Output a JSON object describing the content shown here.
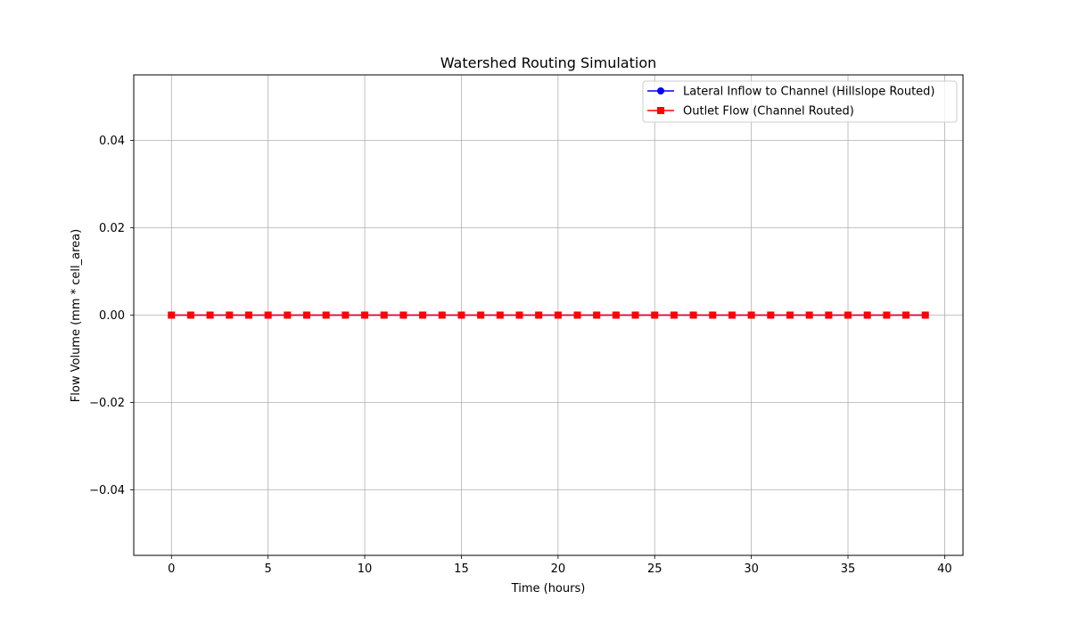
{
  "chart_data": {
    "type": "line",
    "title": "Watershed Routing Simulation",
    "xlabel": "Time (hours)",
    "ylabel": "Flow Volume (mm * cell_area)",
    "xlim": [
      -1.95,
      40.95
    ],
    "ylim": [
      -0.055,
      0.055
    ],
    "xticks": [
      0,
      5,
      10,
      15,
      20,
      25,
      30,
      35,
      40
    ],
    "yticks": [
      -0.04,
      -0.02,
      0.0,
      0.02,
      0.04
    ],
    "ytick_labels": [
      "−0.04",
      "−0.02",
      "0.00",
      "0.02",
      "0.04"
    ],
    "grid": true,
    "legend_position": "top-right",
    "x": [
      0,
      1,
      2,
      3,
      4,
      5,
      6,
      7,
      8,
      9,
      10,
      11,
      12,
      13,
      14,
      15,
      16,
      17,
      18,
      19,
      20,
      21,
      22,
      23,
      24,
      25,
      26,
      27,
      28,
      29,
      30,
      31,
      32,
      33,
      34,
      35,
      36,
      37,
      38,
      39
    ],
    "series": [
      {
        "name": "Lateral Inflow to Channel (Hillslope Routed)",
        "color": "#0000ff",
        "marker": "circle",
        "values": [
          0,
          0,
          0,
          0,
          0,
          0,
          0,
          0,
          0,
          0,
          0,
          0,
          0,
          0,
          0,
          0,
          0,
          0,
          0,
          0,
          0,
          0,
          0,
          0,
          0,
          0,
          0,
          0,
          0,
          0,
          0,
          0,
          0,
          0,
          0,
          0,
          0,
          0,
          0,
          0
        ]
      },
      {
        "name": "Outlet Flow (Channel Routed)",
        "color": "#ff0000",
        "marker": "square",
        "values": [
          0,
          0,
          0,
          0,
          0,
          0,
          0,
          0,
          0,
          0,
          0,
          0,
          0,
          0,
          0,
          0,
          0,
          0,
          0,
          0,
          0,
          0,
          0,
          0,
          0,
          0,
          0,
          0,
          0,
          0,
          0,
          0,
          0,
          0,
          0,
          0,
          0,
          0,
          0,
          0
        ]
      }
    ]
  }
}
